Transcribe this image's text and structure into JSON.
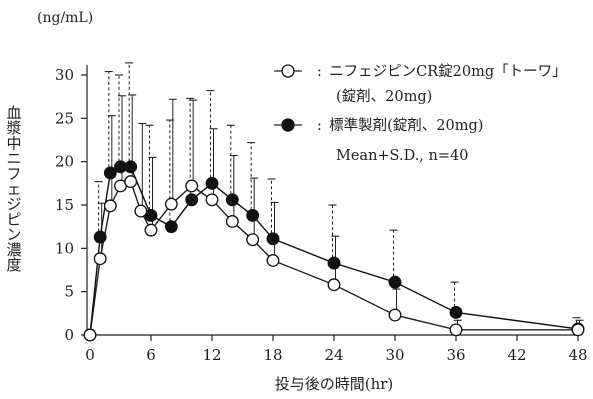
{
  "chart_data": {
    "type": "line",
    "unit_label": "(ng/mL)",
    "xlabel": "投与後の時間(hr)",
    "ylabel": "血漿中ニフェジピン濃度",
    "xlim": [
      0,
      48
    ],
    "ylim": [
      0,
      30
    ],
    "x_ticks": [
      0,
      6,
      12,
      18,
      24,
      30,
      36,
      42,
      48
    ],
    "y_ticks": [
      0,
      5,
      10,
      15,
      20,
      25,
      30
    ],
    "legend_position": "top-right",
    "legend_note": "Mean+S.D., n=40",
    "series": [
      {
        "name": "ニフェジピンCR錠20mg「トーワ」",
        "name_line2": "(錠剤、20mg)",
        "marker": "open-circle",
        "sd_style": "solid",
        "color": "#222222",
        "x": [
          0,
          1,
          2,
          3,
          4,
          5,
          6,
          8,
          10,
          12,
          14,
          16,
          18,
          24,
          30,
          36,
          48
        ],
        "y": [
          0,
          8.8,
          14.9,
          17.2,
          17.7,
          14.3,
          12.1,
          15.1,
          17.2,
          15.6,
          13.1,
          11.0,
          8.6,
          5.8,
          2.3,
          0.6,
          0.6
        ],
        "sd_upper": [
          0,
          15.2,
          25.3,
          27.6,
          27.7,
          24.4,
          20.5,
          27.2,
          27.1,
          23.8,
          20.7,
          18.1,
          15.3,
          11.4,
          5.3,
          1.7,
          1.7
        ]
      },
      {
        "name": "標準製剤(錠剤、20mg)",
        "marker": "filled-circle",
        "sd_style": "dashed",
        "color": "#111111",
        "x": [
          0,
          1,
          2,
          3,
          4,
          6,
          8,
          10,
          12,
          14,
          16,
          18,
          24,
          30,
          36,
          48
        ],
        "y": [
          0,
          11.3,
          18.7,
          19.4,
          19.4,
          13.8,
          12.5,
          15.6,
          17.5,
          15.6,
          13.8,
          11.1,
          8.3,
          6.1,
          2.6,
          0.7
        ],
        "sd_upper": [
          0,
          17.7,
          30.4,
          30.0,
          31.4,
          24.2,
          24.8,
          27.3,
          28.2,
          24.2,
          22.2,
          18.0,
          15.0,
          12.1,
          6.1,
          2.0
        ]
      }
    ]
  }
}
